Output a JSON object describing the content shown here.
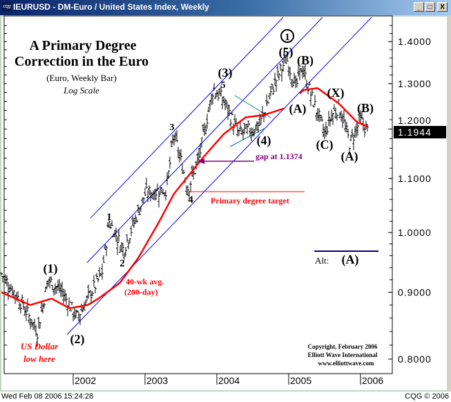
{
  "window": {
    "logo": "cqg",
    "title": "IEURUSD - DM-Euro / United States Index, Weekly",
    "buttons": {
      "minimize": "_",
      "maximize": "□",
      "close": "X"
    }
  },
  "status_bar": {
    "datetime": "Wed Feb 08 2006 15:24:28",
    "copyright": "CQG © 2006"
  },
  "chart_data": {
    "type": "bar",
    "subtype": "weekly OHLC bars",
    "title": "A Primary Degree",
    "title_line2": "Correction in the Euro",
    "subtitle": "(Euro, Weekly Bar)",
    "scale_note": "Log Scale",
    "y_scale": "log",
    "ylim": [
      0.78,
      1.47
    ],
    "y_ticks": [
      "1.4000",
      "1.3000",
      "1.2000",
      "1.1000",
      "1.0000",
      "0.9000",
      "0.8000"
    ],
    "x_ticks": [
      "2002",
      "2003",
      "2004",
      "2005",
      "2006"
    ],
    "xlim": [
      2001.0,
      2006.4
    ],
    "last_price": "1.1944",
    "series": [
      {
        "role": "price",
        "color": "#000000",
        "x": [
          2001.0,
          2001.3,
          2001.5,
          2001.65,
          2001.85,
          2002.05,
          2002.4,
          2002.5,
          2002.7,
          2003.0,
          2003.3,
          2003.4,
          2003.6,
          2003.75,
          2003.95,
          2004.1,
          2004.3,
          2004.5,
          2004.6,
          2004.8,
          2004.97,
          2005.1,
          2005.18,
          2005.3,
          2005.5,
          2005.6,
          2005.7,
          2005.85,
          2006.0,
          2006.1
        ],
        "y": [
          0.93,
          0.88,
          0.84,
          0.92,
          0.9,
          0.86,
          0.93,
          1.02,
          0.97,
          1.07,
          1.08,
          1.19,
          1.08,
          1.14,
          1.29,
          1.26,
          1.19,
          1.2,
          1.21,
          1.3,
          1.36,
          1.29,
          1.34,
          1.28,
          1.19,
          1.23,
          1.25,
          1.17,
          1.22,
          1.1944
        ]
      },
      {
        "role": "moving-average",
        "name": "40-wk avg. (200-day)",
        "color": "#ff0000",
        "x": [
          2001.0,
          2001.4,
          2001.7,
          2001.95,
          2002.2,
          2002.35,
          2002.65,
          2002.9,
          2003.2,
          2003.4,
          2003.8,
          2004.1,
          2004.4,
          2004.65,
          2004.95,
          2005.2,
          2005.4,
          2005.7,
          2005.95,
          2006.1
        ],
        "y": [
          0.9,
          0.88,
          0.89,
          0.875,
          0.88,
          0.89,
          0.915,
          0.955,
          1.02,
          1.07,
          1.14,
          1.19,
          1.225,
          1.23,
          1.245,
          1.285,
          1.29,
          1.255,
          1.215,
          1.205
        ]
      }
    ],
    "colors": {
      "channel": "#0000ff",
      "triangle": "#008080",
      "gap": "#800080",
      "target": "#ff0000",
      "ma": "#ff0000"
    },
    "annotations": {
      "wave_1_circled": "1",
      "wave_5_paren": "(5)",
      "wave_b_top": "(B)",
      "wave_3_paren": "(3)",
      "wave_5_small": "5",
      "wave_3_small": "3",
      "wave_x": "(X)",
      "wave_b_right": "(B)",
      "wave_a_mid": "(A)",
      "wave_4_paren": "(4)",
      "wave_c": "(C)",
      "wave_a_low": "(A)",
      "gap_label": "gap at 1.1374",
      "wave_4_small": "4",
      "target_label": "Primary degree target",
      "wave_1_small": "1",
      "wave_2_small": "2",
      "alt_label": "Alt:",
      "alt_wave": "(A)",
      "wave_1_paren": "(1)",
      "ma_label_1": "40-wk avg.",
      "ma_label_2": "(200-day)",
      "wave_2_paren": "(2)",
      "usd_low_1": "US Dollar",
      "usd_low_2": "low here",
      "copyright_1": "Copyright, February 2006",
      "copyright_2": "Elliott Wave International",
      "copyright_3": "www.elliottwave.com"
    }
  }
}
